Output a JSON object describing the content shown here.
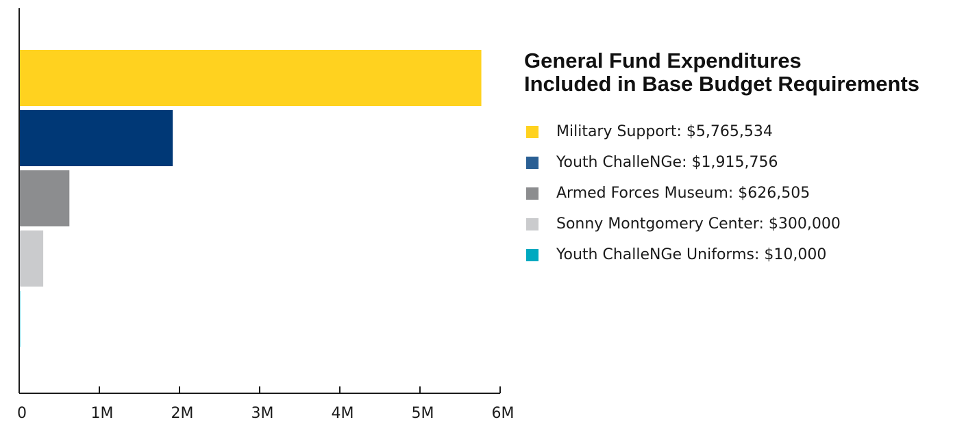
{
  "chart_data": {
    "type": "bar",
    "orientation": "horizontal",
    "title": "General Fund Expenditures",
    "subtitle": "Included in Base Budget Requirements",
    "categories": [
      "Military Support",
      "Youth ChalleNGe",
      "Armed Forces Museum",
      "Sonny Montgomery Center",
      "Youth ChalleNGe Uniforms"
    ],
    "values": [
      5765534,
      1915756,
      626505,
      300000,
      10000
    ],
    "colors": [
      "#FFD21F",
      "#003876",
      "#8C8D8F",
      "#CACBCD",
      "#00A9C0"
    ],
    "legend_swatch_colors": [
      "#FFD21F",
      "#2A5F94",
      "#8C8D8F",
      "#CACBCD",
      "#00A9C0"
    ],
    "legend_labels": [
      "Military Support: $5,765,534",
      "Youth ChalleNGe: $1,915,756",
      "Armed Forces Museum: $626,505",
      "Sonny Montgomery Center: $300,000",
      "Youth ChalleNGe Uniforms: $10,000"
    ],
    "xlim": [
      0,
      6000000
    ],
    "x_ticks": [
      0,
      1000000,
      2000000,
      3000000,
      4000000,
      5000000,
      6000000
    ],
    "x_tick_labels": [
      "0",
      "1M",
      "2M",
      "3M",
      "4M",
      "5M",
      "6M"
    ],
    "xlabel": "",
    "ylabel": "",
    "grid": false,
    "legend_position": "right"
  }
}
